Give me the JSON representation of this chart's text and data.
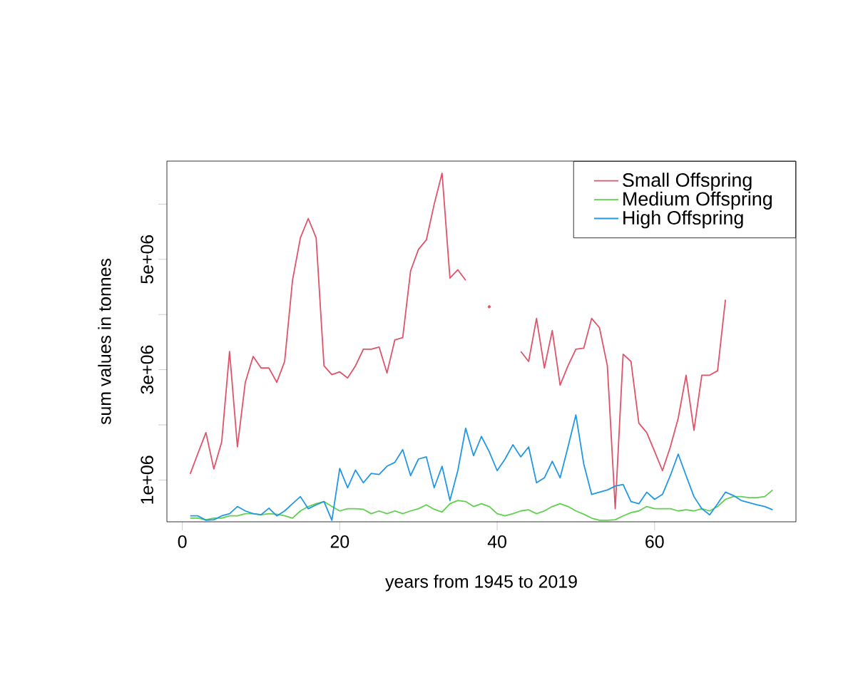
{
  "chart_data": {
    "type": "line",
    "xlabel": "years from 1945 to 2019",
    "ylabel": "sum values in tonnes",
    "x": [
      1,
      2,
      3,
      4,
      5,
      6,
      7,
      8,
      9,
      10,
      11,
      12,
      13,
      14,
      15,
      16,
      17,
      18,
      19,
      20,
      21,
      22,
      23,
      24,
      25,
      26,
      27,
      28,
      29,
      30,
      31,
      32,
      33,
      34,
      35,
      36,
      37,
      38,
      39,
      40,
      41,
      42,
      43,
      44,
      45,
      46,
      47,
      48,
      49,
      50,
      51,
      52,
      53,
      54,
      55,
      56,
      57,
      58,
      59,
      60,
      61,
      62,
      63,
      64,
      65,
      66,
      67,
      68,
      69,
      70,
      71,
      72,
      73,
      74,
      75
    ],
    "series": [
      {
        "name": "Small Offspring",
        "color": "#df536b",
        "values": [
          1110000.0,
          1490000.0,
          1860000.0,
          1200000.0,
          1690000.0,
          3330000.0,
          1600000.0,
          2770000.0,
          3240000.0,
          3030000.0,
          3030000.0,
          2770000.0,
          3150000.0,
          4620000.0,
          5390000.0,
          5740000.0,
          5390000.0,
          3070000.0,
          2910000.0,
          2960000.0,
          2850000.0,
          3070000.0,
          3370000.0,
          3370000.0,
          3410000.0,
          2940000.0,
          3540000.0,
          3580000.0,
          4790000.0,
          5180000.0,
          5350000.0,
          6000000.0,
          6560000.0,
          4660000.0,
          4810000.0,
          4620000.0,
          null,
          null,
          4140000.0,
          null,
          null,
          null,
          3330000.0,
          3150000.0,
          3930000.0,
          3030000.0,
          3710000.0,
          2720000.0,
          3070000.0,
          3370000.0,
          3390000.0,
          3930000.0,
          3760000.0,
          3070000.0,
          480000.0,
          3280000.0,
          3150000.0,
          2030000.0,
          1860000.0,
          1520000.0,
          1170000.0,
          1600000.0,
          2120000.0,
          2900000.0,
          1900000.0,
          2900000.0,
          2900000.0,
          2980000.0,
          4270000.0,
          null,
          null,
          null,
          null,
          null,
          null
        ]
      },
      {
        "name": "Medium Offspring",
        "color": "#61d04f",
        "values": [
          310000.0,
          310000.0,
          280000.0,
          310000.0,
          310000.0,
          350000.0,
          350000.0,
          390000.0,
          390000.0,
          370000.0,
          390000.0,
          380000.0,
          350000.0,
          310000.0,
          440000.0,
          520000.0,
          570000.0,
          610000.0,
          520000.0,
          440000.0,
          480000.0,
          480000.0,
          470000.0,
          390000.0,
          440000.0,
          390000.0,
          440000.0,
          390000.0,
          440000.0,
          480000.0,
          550000.0,
          470000.0,
          420000.0,
          570000.0,
          630000.0,
          610000.0,
          520000.0,
          570000.0,
          520000.0,
          390000.0,
          350000.0,
          390000.0,
          440000.0,
          460000.0,
          390000.0,
          440000.0,
          520000.0,
          570000.0,
          520000.0,
          440000.0,
          380000.0,
          310000.0,
          270000.0,
          270000.0,
          280000.0,
          350000.0,
          410000.0,
          440000.0,
          520000.0,
          480000.0,
          480000.0,
          480000.0,
          440000.0,
          460000.0,
          440000.0,
          480000.0,
          440000.0,
          520000.0,
          650000.0,
          700000.0,
          700000.0,
          680000.0,
          680000.0,
          700000.0,
          820000.0
        ]
      },
      {
        "name": "High Offspring",
        "color": "#2297e6",
        "values": [
          350000.0,
          350000.0,
          270000.0,
          280000.0,
          350000.0,
          390000.0,
          520000.0,
          440000.0,
          390000.0,
          370000.0,
          490000.0,
          350000.0,
          440000.0,
          570000.0,
          700000.0,
          480000.0,
          550000.0,
          610000.0,
          270000.0,
          1210000.0,
          860000.0,
          1180000.0,
          950000.0,
          1120000.0,
          1100000.0,
          1250000.0,
          1320000.0,
          1550000.0,
          1080000.0,
          1380000.0,
          1420000.0,
          860000.0,
          1250000.0,
          630000.0,
          1170000.0,
          1940000.0,
          1440000.0,
          1790000.0,
          1510000.0,
          1170000.0,
          1380000.0,
          1640000.0,
          1420000.0,
          1600000.0,
          950000.0,
          1040000.0,
          1340000.0,
          1040000.0,
          1600000.0,
          2180000.0,
          1290000.0,
          740000.0,
          780000.0,
          820000.0,
          890000.0,
          920000.0,
          610000.0,
          570000.0,
          780000.0,
          650000.0,
          740000.0,
          1080000.0,
          1470000.0,
          1080000.0,
          700000.0,
          480000.0,
          370000.0,
          570000.0,
          780000.0,
          720000.0,
          630000.0,
          590000.0,
          550000.0,
          520000.0,
          460000.0
        ]
      }
    ],
    "xlim": [
      -1.96,
      77.96
    ],
    "ylim": [
      243000,
      6780000
    ],
    "xticks": [
      0,
      20,
      40,
      60
    ],
    "yticks": [
      {
        "value": 1000000,
        "label": "1e+06"
      },
      {
        "value": 2000000,
        "label": null
      },
      {
        "value": 3000000,
        "label": "3e+06"
      },
      {
        "value": 4000000,
        "label": null
      },
      {
        "value": 5000000,
        "label": "5e+06"
      },
      {
        "value": 6000000,
        "label": null
      }
    ],
    "legend": "top right"
  }
}
